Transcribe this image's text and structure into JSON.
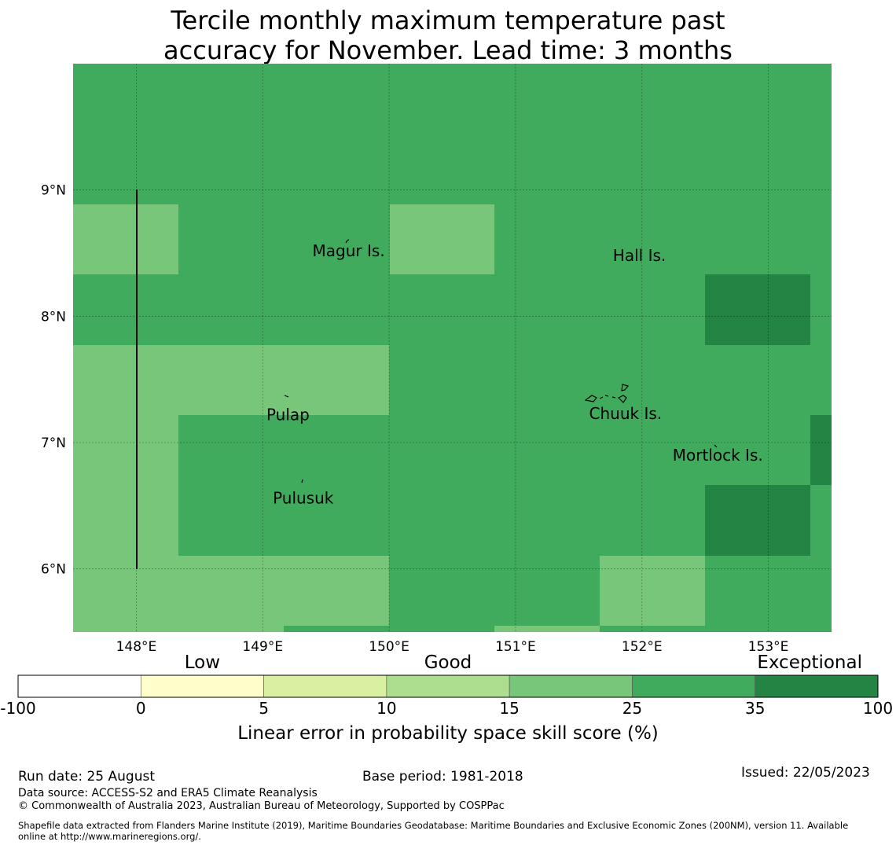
{
  "title_line1": "Tercile monthly maximum temperature past",
  "title_line2": "accuracy for November. Lead time: 3 months",
  "map": {
    "lon_range": [
      147.5,
      153.5
    ],
    "lat_range": [
      5.5,
      10.0
    ],
    "lon_ticks": [
      {
        "value": 148,
        "label": "148°E"
      },
      {
        "value": 149,
        "label": "149°E"
      },
      {
        "value": 150,
        "label": "150°E"
      },
      {
        "value": 151,
        "label": "151°E"
      },
      {
        "value": 152,
        "label": "152°E"
      },
      {
        "value": 153,
        "label": "153°E"
      }
    ],
    "lat_ticks": [
      {
        "value": 9,
        "label": "9°N"
      },
      {
        "value": 8,
        "label": "8°N"
      },
      {
        "value": 7,
        "label": "7°N"
      },
      {
        "value": 6,
        "label": "6°N"
      }
    ],
    "places": [
      {
        "name": "Magur Is.",
        "lon": 149.68,
        "lat": 8.52
      },
      {
        "name": "Hall Is.",
        "lon": 151.98,
        "lat": 8.48
      },
      {
        "name": "Pulap",
        "lon": 149.2,
        "lat": 7.22
      },
      {
        "name": "Chuuk Is.",
        "lon": 151.87,
        "lat": 7.23
      },
      {
        "name": "Mortlock Is.",
        "lon": 152.6,
        "lat": 6.9
      },
      {
        "name": "Pulusuk",
        "lon": 149.32,
        "lat": 6.56
      }
    ]
  },
  "colorbar": {
    "categories": [
      {
        "label": "Low",
        "at": 1.5
      },
      {
        "label": "Good",
        "at": 3.5
      },
      {
        "label": "Exceptional",
        "at": 6.5
      }
    ],
    "ticks": [
      "-100",
      "0",
      "5",
      "10",
      "15",
      "25",
      "35",
      "100"
    ],
    "colors": [
      "#ffffff",
      "#ffffcc",
      "#d9f0a3",
      "#addd8e",
      "#78c679",
      "#41ab5d",
      "#238443"
    ],
    "title": "Linear error in probability space skill score (%)"
  },
  "footer": {
    "run_date": "Run date: 25 August",
    "base_period": "Base period: 1981-2018",
    "issued": "Issued: 22/05/2023",
    "data_source": "Data source: ACCESS-S2 and ERA5 Climate Reanalysis",
    "copyright": "© Commonwealth of Australia 2023, Australian Bureau of Meteorology, Supported by COSPPac",
    "shapefile_line1": "Shapefile data extracted from Flanders Marine Institute (2019), Maritime Boundaries Geodatabase: Maritime Boundaries and Exclusive Economic Zones (200NM), version 11. Available",
    "shapefile_line2": "online at http://www.marineregions.org/."
  }
}
